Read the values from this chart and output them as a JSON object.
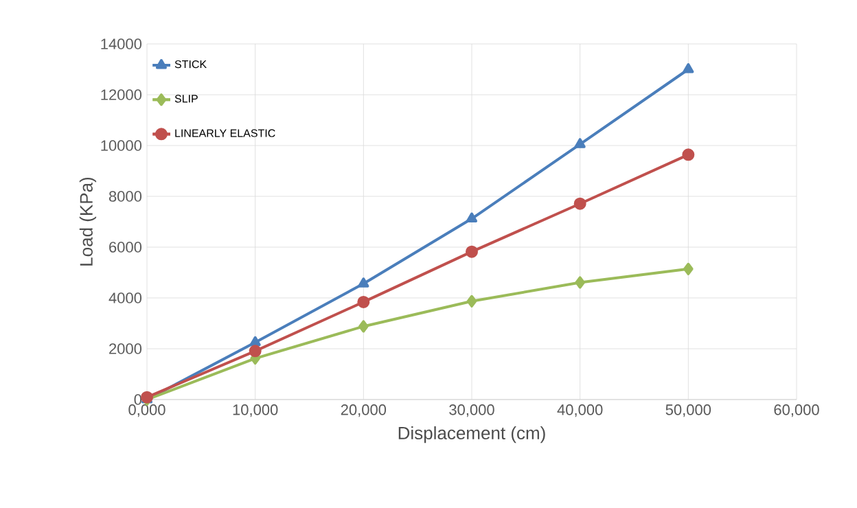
{
  "chart_data": {
    "type": "line",
    "xlabel": "Displacement (cm)",
    "ylabel": "Load (KPa)",
    "x": [
      0,
      10000,
      20000,
      30000,
      40000,
      50000
    ],
    "series": [
      {
        "name": "STICK",
        "color": "#4a7ebb",
        "marker": "triangle",
        "values": [
          0,
          2250,
          4560,
          7120,
          10050,
          13000
        ]
      },
      {
        "name": "SLIP",
        "color": "#9bbb59",
        "marker": "diamond",
        "values": [
          0,
          1620,
          2880,
          3870,
          4610,
          5140
        ]
      },
      {
        "name": "LINEARLY ELASTIC",
        "color": "#c0504d",
        "marker": "circle",
        "values": [
          90,
          1910,
          3840,
          5820,
          7710,
          9640
        ]
      }
    ],
    "xlim": [
      0,
      60000
    ],
    "ylim": [
      0,
      14000
    ],
    "xticks": [
      {
        "value": 0,
        "label": "0,000"
      },
      {
        "value": 10000,
        "label": "10,000"
      },
      {
        "value": 20000,
        "label": "20,000"
      },
      {
        "value": 30000,
        "label": "30,000"
      },
      {
        "value": 40000,
        "label": "40,000"
      },
      {
        "value": 50000,
        "label": "50,000"
      },
      {
        "value": 60000,
        "label": "60,000"
      }
    ],
    "yticks": [
      0,
      2000,
      4000,
      6000,
      8000,
      10000,
      12000,
      14000
    ],
    "grid": true,
    "legend": "top left",
    "line_style": "solid"
  }
}
